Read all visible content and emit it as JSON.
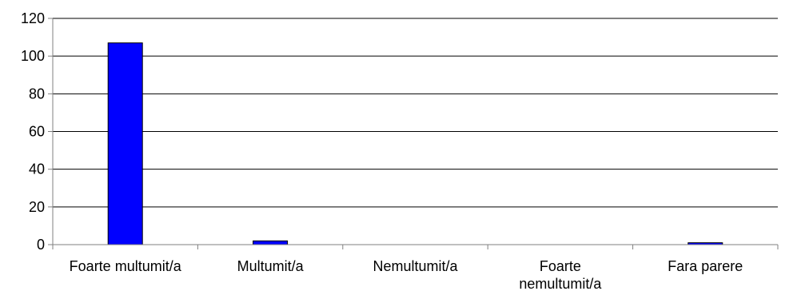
{
  "chart_data": {
    "type": "bar",
    "categories": [
      [
        "Foarte multumit/a"
      ],
      [
        "Multumit/a"
      ],
      [
        "Nemultumit/a"
      ],
      [
        "Foarte",
        "nemultumit/a"
      ],
      [
        "Fara parere"
      ]
    ],
    "values": [
      107,
      2,
      0,
      0,
      1
    ],
    "ylim": [
      0,
      120
    ],
    "yticks": [
      0,
      20,
      40,
      60,
      80,
      100,
      120
    ],
    "grid": true,
    "bar_color": "#0000FF",
    "gridline_color": "#000000",
    "axis_color": "#808080"
  }
}
